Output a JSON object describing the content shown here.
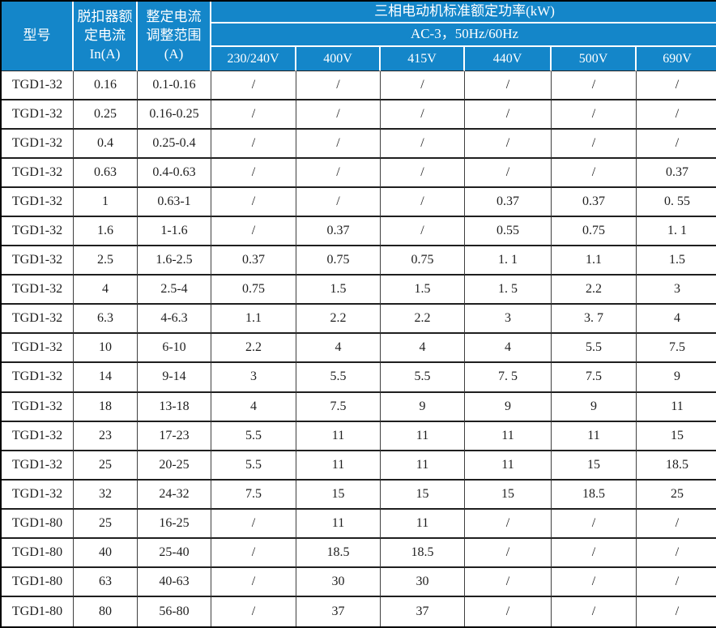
{
  "colors": {
    "header_bg": "#1486c9",
    "header_text": "#ffffff",
    "header_divider": "#ffffff",
    "body_text": "#1f1f1f",
    "grid_dark": "#1f1f1f",
    "grid_vert": "#3f3f3f",
    "outer_border": "#000000"
  },
  "table": {
    "header": {
      "col_model": "型号",
      "col_rated_current": "脱扣器额定电流 In(A)",
      "col_adjust_range": "整定电流调整范围(A)",
      "power_title": "三相电动机标准额定功率(kW)",
      "ac_subtitle": "AC-3，50Hz/60Hz",
      "voltages": [
        "230/240V",
        "400V",
        "415V",
        "440V",
        "500V",
        "690V"
      ]
    },
    "rows": [
      {
        "cells": [
          "TGD1-32",
          "0.16",
          "0.1-0.16",
          "/",
          "/",
          "/",
          "/",
          "/",
          "/"
        ]
      },
      {
        "cells": [
          "TGD1-32",
          "0.25",
          "0.16-0.25",
          "/",
          "/",
          "/",
          "/",
          "/",
          "/"
        ]
      },
      {
        "cells": [
          "TGD1-32",
          "0.4",
          "0.25-0.4",
          "/",
          "/",
          "/",
          "/",
          "/",
          "/"
        ]
      },
      {
        "cells": [
          "TGD1-32",
          "0.63",
          "0.4-0.63",
          "/",
          "/",
          "/",
          "/",
          "/",
          "0.37"
        ]
      },
      {
        "cells": [
          "TGD1-32",
          "1",
          "0.63-1",
          "/",
          "/",
          "/",
          "0.37",
          "0.37",
          "0. 55"
        ]
      },
      {
        "cells": [
          "TGD1-32",
          "1.6",
          "1-1.6",
          "/",
          "0.37",
          "/",
          "0.55",
          "0.75",
          "1. 1"
        ]
      },
      {
        "cells": [
          "TGD1-32",
          "2.5",
          "1.6-2.5",
          "0.37",
          "0.75",
          "0.75",
          "1. 1",
          "1.1",
          "1.5"
        ]
      },
      {
        "cells": [
          "TGD1-32",
          "4",
          "2.5-4",
          "0.75",
          "1.5",
          "1.5",
          "1. 5",
          "2.2",
          "3"
        ]
      },
      {
        "cells": [
          "TGD1-32",
          "6.3",
          "4-6.3",
          "1.1",
          "2.2",
          "2.2",
          "3",
          "3. 7",
          "4"
        ]
      },
      {
        "cells": [
          "TGD1-32",
          "10",
          "6-10",
          "2.2",
          "4",
          "4",
          "4",
          "5.5",
          "7.5"
        ]
      },
      {
        "cells": [
          "TGD1-32",
          "14",
          "9-14",
          "3",
          "5.5",
          "5.5",
          "7. 5",
          "7.5",
          "9"
        ]
      },
      {
        "cells": [
          "TGD1-32",
          "18",
          "13-18",
          "4",
          "7.5",
          "9",
          "9",
          "9",
          "11"
        ]
      },
      {
        "cells": [
          "TGD1-32",
          "23",
          "17-23",
          "5.5",
          "11",
          "11",
          "11",
          "11",
          "15"
        ]
      },
      {
        "cells": [
          "TGD1-32",
          "25",
          "20-25",
          "5.5",
          "11",
          "11",
          "11",
          "15",
          "18.5"
        ]
      },
      {
        "cells": [
          "TGD1-32",
          "32",
          "24-32",
          "7.5",
          "15",
          "15",
          "15",
          "18.5",
          "25"
        ]
      },
      {
        "cells": [
          "TGD1-80",
          "25",
          "16-25",
          "/",
          "11",
          "11",
          "/",
          "/",
          "/"
        ]
      },
      {
        "cells": [
          "TGD1-80",
          "40",
          "25-40",
          "/",
          "18.5",
          "18.5",
          "/",
          "/",
          "/"
        ]
      },
      {
        "cells": [
          "TGD1-80",
          "63",
          "40-63",
          "/",
          "30",
          "30",
          "/",
          "/",
          "/"
        ]
      },
      {
        "cells": [
          "TGD1-80",
          "80",
          "56-80",
          "/",
          "37",
          "37",
          "/",
          "/",
          "/"
        ]
      }
    ]
  }
}
